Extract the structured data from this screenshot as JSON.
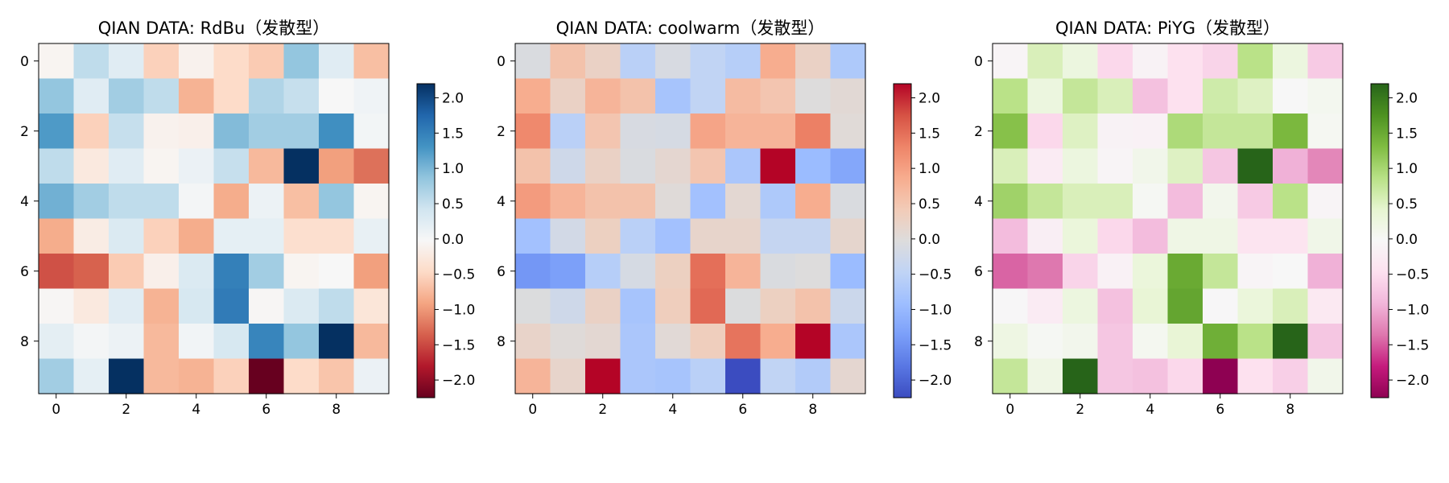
{
  "chart_data": [
    {
      "type": "heatmap",
      "title": "QIAN DATA: RdBu（发散型）",
      "colormap": "RdBu",
      "x": [
        0,
        1,
        2,
        3,
        4,
        5,
        6,
        7,
        8,
        9
      ],
      "y": [
        0,
        1,
        2,
        3,
        4,
        5,
        6,
        7,
        8,
        9
      ],
      "xticks": [
        "0",
        "2",
        "4",
        "6",
        "8"
      ],
      "yticks": [
        "0",
        "2",
        "4",
        "6",
        "8"
      ],
      "colorbar_ticks": [
        "2.0",
        "1.5",
        "1.0",
        "0.5",
        "0.0",
        "−0.5",
        "−1.0",
        "−1.5",
        "−2.0"
      ],
      "vlim": [
        -2.25,
        2.2
      ],
      "values": [
        [
          -0.08,
          0.55,
          0.25,
          -0.55,
          -0.12,
          -0.45,
          -0.6,
          0.85,
          0.25,
          -0.7
        ],
        [
          0.85,
          0.25,
          0.75,
          0.55,
          -0.8,
          -0.45,
          0.65,
          0.5,
          -0.02,
          0.07
        ],
        [
          1.25,
          -0.55,
          0.5,
          -0.12,
          -0.15,
          0.95,
          0.75,
          0.75,
          1.35,
          0.03
        ],
        [
          0.55,
          -0.25,
          0.25,
          -0.08,
          0.12,
          0.5,
          -0.75,
          2.2,
          -0.95,
          -1.25
        ],
        [
          1.05,
          0.75,
          0.55,
          0.55,
          0.02,
          -0.85,
          0.1,
          -0.7,
          0.85,
          -0.08
        ],
        [
          -0.85,
          -0.2,
          0.3,
          -0.55,
          -0.85,
          0.18,
          0.18,
          -0.4,
          -0.4,
          0.15
        ],
        [
          -1.45,
          -1.35,
          -0.6,
          -0.15,
          0.3,
          1.5,
          0.75,
          -0.08,
          -0.02,
          -0.95
        ],
        [
          -0.05,
          -0.25,
          0.25,
          -0.8,
          0.35,
          1.55,
          -0.05,
          0.3,
          0.55,
          -0.3
        ],
        [
          0.2,
          0.02,
          0.1,
          -0.75,
          0.05,
          0.35,
          1.45,
          0.85,
          2.2,
          -0.75
        ],
        [
          0.75,
          0.18,
          2.2,
          -0.75,
          -0.8,
          -0.55,
          -2.25,
          -0.45,
          -0.65,
          0.12
        ]
      ]
    },
    {
      "type": "heatmap",
      "title": "QIAN DATA: coolwarm（发散型）",
      "colormap": "coolwarm",
      "x": [
        0,
        1,
        2,
        3,
        4,
        5,
        6,
        7,
        8,
        9
      ],
      "y": [
        0,
        1,
        2,
        3,
        4,
        5,
        6,
        7,
        8,
        9
      ],
      "xticks": [
        "0",
        "2",
        "4",
        "6",
        "8"
      ],
      "yticks": [
        "0",
        "2",
        "4",
        "6",
        "8"
      ],
      "colorbar_ticks": [
        "2.0",
        "1.5",
        "1.0",
        "0.5",
        "0.0",
        "−0.5",
        "−1.0",
        "−1.5",
        "−2.0"
      ],
      "vlim": [
        -2.25,
        2.2
      ],
      "values": [
        [
          -0.08,
          0.55,
          0.25,
          -0.55,
          -0.12,
          -0.45,
          -0.6,
          0.85,
          0.25,
          -0.7
        ],
        [
          0.85,
          0.25,
          0.75,
          0.55,
          -0.8,
          -0.45,
          0.65,
          0.5,
          -0.02,
          0.07
        ],
        [
          1.25,
          -0.55,
          0.5,
          -0.12,
          -0.15,
          0.95,
          0.75,
          0.75,
          1.35,
          0.03
        ],
        [
          0.55,
          -0.25,
          0.25,
          -0.08,
          0.12,
          0.5,
          -0.75,
          2.2,
          -0.95,
          -1.25
        ],
        [
          1.05,
          0.75,
          0.55,
          0.55,
          0.02,
          -0.85,
          0.1,
          -0.7,
          0.85,
          -0.08
        ],
        [
          -0.85,
          -0.2,
          0.3,
          -0.55,
          -0.85,
          0.18,
          0.18,
          -0.4,
          -0.4,
          0.15
        ],
        [
          -1.45,
          -1.35,
          -0.6,
          -0.15,
          0.3,
          1.5,
          0.75,
          -0.08,
          -0.02,
          -0.95
        ],
        [
          -0.05,
          -0.25,
          0.25,
          -0.8,
          0.35,
          1.55,
          -0.05,
          0.3,
          0.55,
          -0.3
        ],
        [
          0.2,
          0.02,
          0.1,
          -0.75,
          0.05,
          0.35,
          1.45,
          0.85,
          2.2,
          -0.75
        ],
        [
          0.75,
          0.18,
          2.2,
          -0.75,
          -0.8,
          -0.55,
          -2.25,
          -0.45,
          -0.65,
          0.12
        ]
      ]
    },
    {
      "type": "heatmap",
      "title": "QIAN DATA: PiYG（发散型）",
      "colormap": "PiYG",
      "x": [
        0,
        1,
        2,
        3,
        4,
        5,
        6,
        7,
        8,
        9
      ],
      "y": [
        0,
        1,
        2,
        3,
        4,
        5,
        6,
        7,
        8,
        9
      ],
      "xticks": [
        "0",
        "2",
        "4",
        "6",
        "8"
      ],
      "yticks": [
        "0",
        "2",
        "4",
        "6",
        "8"
      ],
      "colorbar_ticks": [
        "2.0",
        "1.5",
        "1.0",
        "0.5",
        "0.0",
        "−0.5",
        "−1.0",
        "−1.5",
        "−2.0"
      ],
      "vlim": [
        -2.25,
        2.2
      ],
      "values": [
        [
          -0.08,
          0.55,
          0.25,
          -0.55,
          -0.12,
          -0.45,
          -0.6,
          0.85,
          0.25,
          -0.7
        ],
        [
          0.85,
          0.25,
          0.75,
          0.55,
          -0.8,
          -0.45,
          0.65,
          0.5,
          -0.02,
          0.07
        ],
        [
          1.25,
          -0.55,
          0.5,
          -0.12,
          -0.15,
          0.95,
          0.75,
          0.75,
          1.35,
          0.03
        ],
        [
          0.55,
          -0.25,
          0.25,
          -0.08,
          0.12,
          0.5,
          -0.75,
          2.2,
          -0.95,
          -1.25
        ],
        [
          1.05,
          0.75,
          0.55,
          0.55,
          0.02,
          -0.85,
          0.1,
          -0.7,
          0.85,
          -0.08
        ],
        [
          -0.85,
          -0.2,
          0.3,
          -0.55,
          -0.85,
          0.18,
          0.18,
          -0.4,
          -0.4,
          0.15
        ],
        [
          -1.45,
          -1.35,
          -0.6,
          -0.15,
          0.3,
          1.5,
          0.75,
          -0.08,
          -0.02,
          -0.95
        ],
        [
          -0.05,
          -0.25,
          0.25,
          -0.8,
          0.35,
          1.55,
          -0.05,
          0.3,
          0.55,
          -0.3
        ],
        [
          0.2,
          0.02,
          0.1,
          -0.75,
          0.05,
          0.35,
          1.45,
          0.85,
          2.2,
          -0.75
        ],
        [
          0.75,
          0.18,
          2.2,
          -0.75,
          -0.8,
          -0.55,
          -2.25,
          -0.45,
          -0.65,
          0.12
        ]
      ]
    }
  ]
}
